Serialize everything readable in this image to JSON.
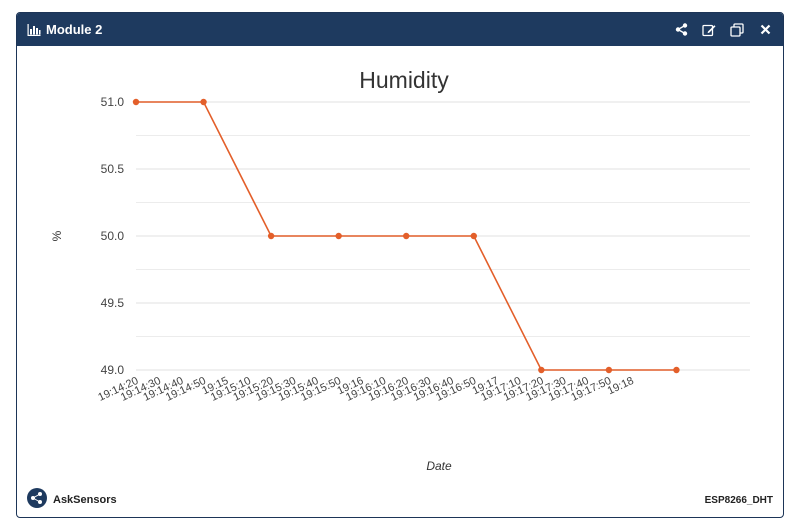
{
  "window": {
    "title": "Module 2",
    "icons": [
      "bar-chart-icon",
      "share-icon",
      "edit-icon",
      "copy-icon",
      "close-icon"
    ]
  },
  "footer": {
    "brand": "AskSensors",
    "device": "ESP8266_DHT"
  },
  "colors": {
    "header": "#1e3a5f",
    "series": "#e35f2a",
    "grid": "#e6e6e6"
  },
  "chart_data": {
    "type": "line",
    "title": "Humidity",
    "xlabel": "Date",
    "ylabel": "%",
    "ylim": [
      49.0,
      51.0
    ],
    "yticks": [
      "51.0",
      "50.5",
      "50.0",
      "49.5",
      "49.0"
    ],
    "xticks": [
      "19:14:20",
      "19:14:30",
      "19:14:40",
      "19:14:50",
      "19:15",
      "19:15:10",
      "19:15:20",
      "19:15:30",
      "19:15:40",
      "19:15:50",
      "19:16",
      "19:16:10",
      "19:16:20",
      "19:16:30",
      "19:16:40",
      "19:16:50",
      "19:17",
      "19:17:10",
      "19:17:20",
      "19:17:30",
      "19:17:40",
      "19:17:50",
      "19:18"
    ],
    "x": [
      "19:14:20",
      "19:14:50",
      "19:15:20",
      "19:15:50",
      "19:16:20",
      "19:16:50",
      "19:17:20",
      "19:17:50",
      "19:18:20"
    ],
    "values": [
      51.0,
      51.0,
      50.0,
      50.0,
      50.0,
      50.0,
      49.0,
      49.0,
      49.0
    ],
    "grid": true,
    "legend": "none"
  }
}
